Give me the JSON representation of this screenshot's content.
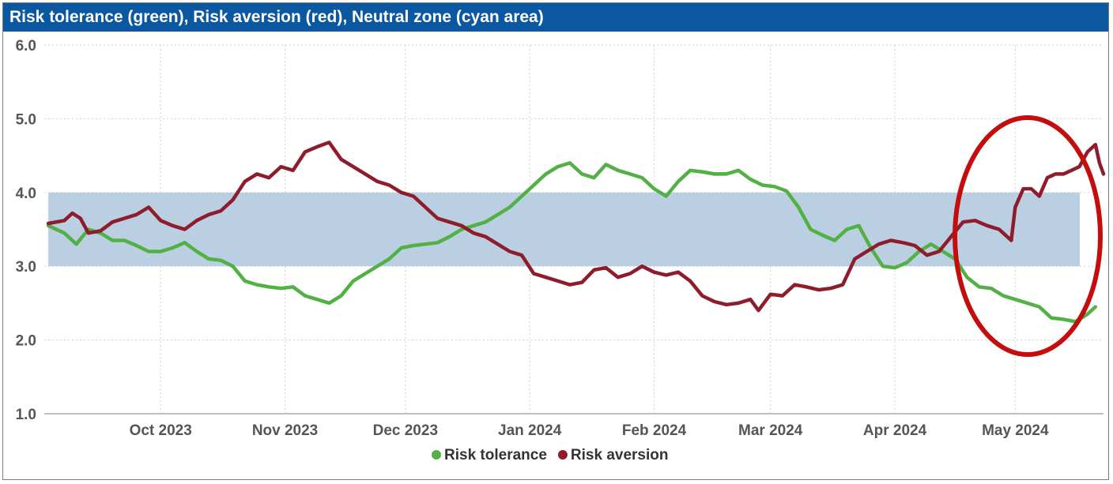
{
  "window": {
    "title": "Risk tolerance (green), Risk aversion (red), Neutral zone (cyan area)"
  },
  "colors": {
    "header": "#0b58a0",
    "tolerance": "#52b045",
    "aversion": "#8e1c2c",
    "neutral": "#bad0e2",
    "highlight": "#c40d0d"
  },
  "chart_data": {
    "type": "line",
    "ylim": [
      1.0,
      6.0
    ],
    "yticks": [
      "1.0",
      "2.0",
      "3.0",
      "4.0",
      "5.0",
      "6.0"
    ],
    "xlim": [
      "2023-09-02",
      "2024-05-23"
    ],
    "xticks": [
      {
        "date": "2023-10-01",
        "label": "Oct 2023"
      },
      {
        "date": "2023-11-01",
        "label": "Nov 2023"
      },
      {
        "date": "2023-12-01",
        "label": "Dec 2023"
      },
      {
        "date": "2024-01-01",
        "label": "Jan 2024"
      },
      {
        "date": "2024-02-01",
        "label": "Feb 2024"
      },
      {
        "date": "2024-03-01",
        "label": "Mar 2024"
      },
      {
        "date": "2024-04-01",
        "label": "Apr 2024"
      },
      {
        "date": "2024-05-01",
        "label": "May 2024"
      }
    ],
    "neutral_zone": [
      3.0,
      4.0
    ],
    "grid": true,
    "legend": "bottom",
    "highlight": {
      "shape": "ellipse",
      "around": "May 2024"
    },
    "series": [
      {
        "name": "Risk tolerance",
        "color": "#52b045",
        "points": [
          [
            "2023-09-03",
            3.55
          ],
          [
            "2023-09-07",
            3.45
          ],
          [
            "2023-09-10",
            3.3
          ],
          [
            "2023-09-13",
            3.5
          ],
          [
            "2023-09-16",
            3.45
          ],
          [
            "2023-09-19",
            3.35
          ],
          [
            "2023-09-22",
            3.35
          ],
          [
            "2023-09-25",
            3.28
          ],
          [
            "2023-09-28",
            3.2
          ],
          [
            "2023-10-01",
            3.2
          ],
          [
            "2023-10-04",
            3.25
          ],
          [
            "2023-10-07",
            3.32
          ],
          [
            "2023-10-10",
            3.2
          ],
          [
            "2023-10-13",
            3.1
          ],
          [
            "2023-10-16",
            3.08
          ],
          [
            "2023-10-19",
            3.0
          ],
          [
            "2023-10-22",
            2.8
          ],
          [
            "2023-10-25",
            2.75
          ],
          [
            "2023-10-28",
            2.72
          ],
          [
            "2023-10-31",
            2.7
          ],
          [
            "2023-11-03",
            2.72
          ],
          [
            "2023-11-06",
            2.6
          ],
          [
            "2023-11-09",
            2.55
          ],
          [
            "2023-11-12",
            2.5
          ],
          [
            "2023-11-15",
            2.6
          ],
          [
            "2023-11-18",
            2.8
          ],
          [
            "2023-11-21",
            2.9
          ],
          [
            "2023-11-24",
            3.0
          ],
          [
            "2023-11-27",
            3.1
          ],
          [
            "2023-11-30",
            3.25
          ],
          [
            "2023-12-03",
            3.28
          ],
          [
            "2023-12-06",
            3.3
          ],
          [
            "2023-12-09",
            3.32
          ],
          [
            "2023-12-12",
            3.4
          ],
          [
            "2023-12-15",
            3.5
          ],
          [
            "2023-12-18",
            3.55
          ],
          [
            "2023-12-21",
            3.6
          ],
          [
            "2023-12-24",
            3.7
          ],
          [
            "2023-12-27",
            3.8
          ],
          [
            "2023-12-30",
            3.95
          ],
          [
            "2024-01-02",
            4.1
          ],
          [
            "2024-01-05",
            4.25
          ],
          [
            "2024-01-08",
            4.35
          ],
          [
            "2024-01-11",
            4.4
          ],
          [
            "2024-01-14",
            4.25
          ],
          [
            "2024-01-17",
            4.2
          ],
          [
            "2024-01-20",
            4.38
          ],
          [
            "2024-01-23",
            4.3
          ],
          [
            "2024-01-26",
            4.25
          ],
          [
            "2024-01-29",
            4.2
          ],
          [
            "2024-02-01",
            4.05
          ],
          [
            "2024-02-04",
            3.95
          ],
          [
            "2024-02-07",
            4.15
          ],
          [
            "2024-02-10",
            4.3
          ],
          [
            "2024-02-13",
            4.28
          ],
          [
            "2024-02-16",
            4.25
          ],
          [
            "2024-02-19",
            4.25
          ],
          [
            "2024-02-22",
            4.3
          ],
          [
            "2024-02-25",
            4.18
          ],
          [
            "2024-02-28",
            4.1
          ],
          [
            "2024-03-02",
            4.08
          ],
          [
            "2024-03-05",
            4.02
          ],
          [
            "2024-03-08",
            3.8
          ],
          [
            "2024-03-11",
            3.5
          ],
          [
            "2024-03-14",
            3.42
          ],
          [
            "2024-03-17",
            3.35
          ],
          [
            "2024-03-20",
            3.5
          ],
          [
            "2024-03-23",
            3.55
          ],
          [
            "2024-03-26",
            3.25
          ],
          [
            "2024-03-29",
            3.0
          ],
          [
            "2024-04-01",
            2.98
          ],
          [
            "2024-04-04",
            3.05
          ],
          [
            "2024-04-07",
            3.2
          ],
          [
            "2024-04-10",
            3.3
          ],
          [
            "2024-04-13",
            3.2
          ],
          [
            "2024-04-16",
            3.1
          ],
          [
            "2024-04-19",
            2.85
          ],
          [
            "2024-04-22",
            2.72
          ],
          [
            "2024-04-25",
            2.7
          ],
          [
            "2024-04-28",
            2.6
          ],
          [
            "2024-05-01",
            2.55
          ],
          [
            "2024-05-04",
            2.5
          ],
          [
            "2024-05-07",
            2.45
          ],
          [
            "2024-05-10",
            2.3
          ],
          [
            "2024-05-13",
            2.28
          ],
          [
            "2024-05-16",
            2.25
          ],
          [
            "2024-05-19",
            2.35
          ],
          [
            "2024-05-21",
            2.45
          ]
        ]
      },
      {
        "name": "Risk aversion",
        "color": "#8e1c2c",
        "points": [
          [
            "2023-09-03",
            3.58
          ],
          [
            "2023-09-07",
            3.62
          ],
          [
            "2023-09-09",
            3.72
          ],
          [
            "2023-09-11",
            3.65
          ],
          [
            "2023-09-13",
            3.45
          ],
          [
            "2023-09-16",
            3.48
          ],
          [
            "2023-09-19",
            3.6
          ],
          [
            "2023-09-22",
            3.65
          ],
          [
            "2023-09-25",
            3.7
          ],
          [
            "2023-09-28",
            3.8
          ],
          [
            "2023-10-01",
            3.62
          ],
          [
            "2023-10-04",
            3.55
          ],
          [
            "2023-10-07",
            3.5
          ],
          [
            "2023-10-10",
            3.62
          ],
          [
            "2023-10-13",
            3.7
          ],
          [
            "2023-10-16",
            3.75
          ],
          [
            "2023-10-19",
            3.9
          ],
          [
            "2023-10-22",
            4.15
          ],
          [
            "2023-10-25",
            4.25
          ],
          [
            "2023-10-28",
            4.2
          ],
          [
            "2023-10-31",
            4.35
          ],
          [
            "2023-11-03",
            4.3
          ],
          [
            "2023-11-06",
            4.55
          ],
          [
            "2023-11-09",
            4.62
          ],
          [
            "2023-11-12",
            4.68
          ],
          [
            "2023-11-15",
            4.45
          ],
          [
            "2023-11-18",
            4.35
          ],
          [
            "2023-11-21",
            4.25
          ],
          [
            "2023-11-24",
            4.15
          ],
          [
            "2023-11-27",
            4.1
          ],
          [
            "2023-11-30",
            4.0
          ],
          [
            "2023-12-03",
            3.95
          ],
          [
            "2023-12-06",
            3.8
          ],
          [
            "2023-12-09",
            3.65
          ],
          [
            "2023-12-12",
            3.6
          ],
          [
            "2023-12-15",
            3.55
          ],
          [
            "2023-12-18",
            3.45
          ],
          [
            "2023-12-21",
            3.4
          ],
          [
            "2023-12-24",
            3.3
          ],
          [
            "2023-12-27",
            3.2
          ],
          [
            "2023-12-30",
            3.15
          ],
          [
            "2024-01-02",
            2.9
          ],
          [
            "2024-01-05",
            2.85
          ],
          [
            "2024-01-08",
            2.8
          ],
          [
            "2024-01-11",
            2.75
          ],
          [
            "2024-01-14",
            2.78
          ],
          [
            "2024-01-17",
            2.95
          ],
          [
            "2024-01-20",
            2.98
          ],
          [
            "2024-01-23",
            2.85
          ],
          [
            "2024-01-26",
            2.9
          ],
          [
            "2024-01-29",
            3.0
          ],
          [
            "2024-02-01",
            2.92
          ],
          [
            "2024-02-04",
            2.88
          ],
          [
            "2024-02-07",
            2.92
          ],
          [
            "2024-02-10",
            2.8
          ],
          [
            "2024-02-13",
            2.6
          ],
          [
            "2024-02-16",
            2.52
          ],
          [
            "2024-02-19",
            2.48
          ],
          [
            "2024-02-22",
            2.5
          ],
          [
            "2024-02-25",
            2.55
          ],
          [
            "2024-02-27",
            2.4
          ],
          [
            "2024-03-01",
            2.62
          ],
          [
            "2024-03-04",
            2.6
          ],
          [
            "2024-03-07",
            2.75
          ],
          [
            "2024-03-10",
            2.72
          ],
          [
            "2024-03-13",
            2.68
          ],
          [
            "2024-03-16",
            2.7
          ],
          [
            "2024-03-19",
            2.75
          ],
          [
            "2024-03-22",
            3.1
          ],
          [
            "2024-03-25",
            3.2
          ],
          [
            "2024-03-28",
            3.3
          ],
          [
            "2024-03-31",
            3.35
          ],
          [
            "2024-04-03",
            3.32
          ],
          [
            "2024-04-06",
            3.28
          ],
          [
            "2024-04-09",
            3.15
          ],
          [
            "2024-04-12",
            3.2
          ],
          [
            "2024-04-15",
            3.4
          ],
          [
            "2024-04-18",
            3.6
          ],
          [
            "2024-04-21",
            3.62
          ],
          [
            "2024-04-24",
            3.55
          ],
          [
            "2024-04-27",
            3.5
          ],
          [
            "2024-04-30",
            3.35
          ],
          [
            "2024-05-01",
            3.8
          ],
          [
            "2024-05-03",
            4.05
          ],
          [
            "2024-05-05",
            4.05
          ],
          [
            "2024-05-07",
            3.95
          ],
          [
            "2024-05-09",
            4.2
          ],
          [
            "2024-05-11",
            4.25
          ],
          [
            "2024-05-13",
            4.25
          ],
          [
            "2024-05-15",
            4.3
          ],
          [
            "2024-05-17",
            4.35
          ],
          [
            "2024-05-19",
            4.55
          ],
          [
            "2024-05-21",
            4.65
          ],
          [
            "2024-05-22",
            4.4
          ],
          [
            "2024-05-23",
            4.25
          ]
        ]
      }
    ]
  }
}
